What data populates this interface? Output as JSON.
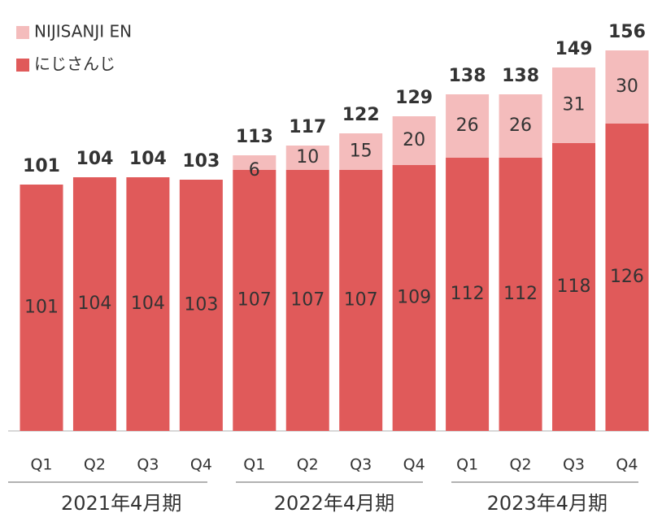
{
  "chart_data": {
    "type": "stacked_bar",
    "categories": [
      "Q1",
      "Q2",
      "Q3",
      "Q4",
      "Q1",
      "Q2",
      "Q3",
      "Q4",
      "Q1",
      "Q2",
      "Q3",
      "Q4"
    ],
    "groups": [
      "2021年4月期",
      "2022年4月期",
      "2023年4月期"
    ],
    "series": [
      {
        "name": "にじさんじ",
        "color": "#e05a5a",
        "values": [
          101,
          104,
          104,
          103,
          107,
          107,
          107,
          109,
          112,
          112,
          118,
          126
        ]
      },
      {
        "name": "NIJISANJI EN",
        "color": "#f4bcbc",
        "values": [
          null,
          null,
          null,
          null,
          6,
          10,
          15,
          20,
          26,
          26,
          31,
          30
        ]
      }
    ],
    "totals": [
      101,
      104,
      104,
      103,
      113,
      117,
      122,
      129,
      138,
      138,
      149,
      156
    ]
  }
}
